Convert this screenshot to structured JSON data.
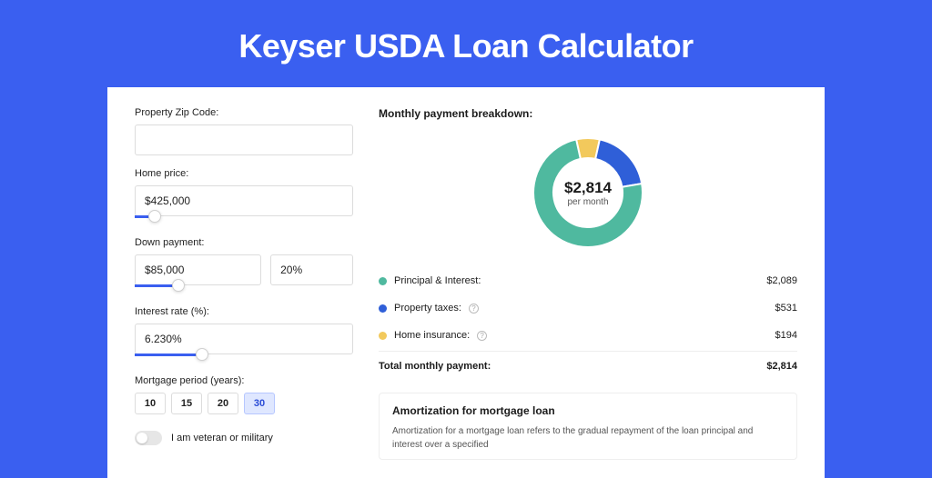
{
  "title": "Keyser USDA Loan Calculator",
  "form": {
    "zip": {
      "label": "Property Zip Code:",
      "value": ""
    },
    "homePrice": {
      "label": "Home price:",
      "value": "$425,000",
      "slider_pct": 9
    },
    "downPayment": {
      "label": "Down payment:",
      "amount": "$85,000",
      "pct": "20%",
      "slider_pct": 20
    },
    "interest": {
      "label": "Interest rate (%):",
      "value": "6.230%",
      "slider_pct": 31
    },
    "period": {
      "label": "Mortgage period (years):",
      "options": [
        "10",
        "15",
        "20",
        "30"
      ],
      "selected": "30"
    },
    "veteran": {
      "label": "I am veteran or military",
      "on": false
    }
  },
  "breakdown": {
    "title": "Monthly payment breakdown:",
    "center_amount": "$2,814",
    "center_sub": "per month",
    "rows": [
      {
        "label": "Principal & Interest:",
        "value": "$2,089",
        "color": "#4fb99f",
        "info": false,
        "pct": 74.2
      },
      {
        "label": "Property taxes:",
        "value": "$531",
        "color": "#2f5fd8",
        "info": true,
        "pct": 18.9
      },
      {
        "label": "Home insurance:",
        "value": "$194",
        "color": "#f2c95c",
        "info": true,
        "pct": 6.9
      }
    ],
    "total": {
      "label": "Total monthly payment:",
      "value": "$2,814"
    },
    "donut_bg": "#f5f5f5"
  },
  "amort": {
    "title": "Amortization for mortgage loan",
    "text": "Amortization for a mortgage loan refers to the gradual repayment of the loan principal and interest over a specified"
  }
}
